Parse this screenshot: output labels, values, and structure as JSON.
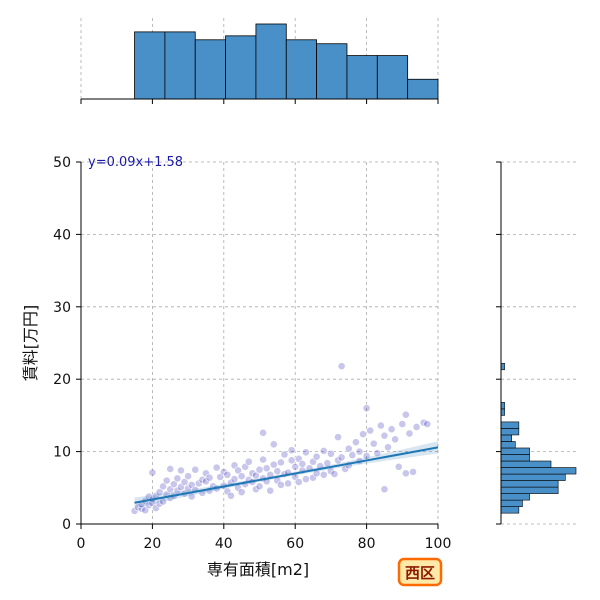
{
  "chart_data": {
    "type": "scatter",
    "xlabel": "専有面積[m2]",
    "ylabel": "賃料[万円]",
    "xlim": [
      0,
      100
    ],
    "ylim": [
      0,
      50
    ],
    "x_ticks": [
      0,
      20,
      40,
      60,
      80,
      100
    ],
    "y_ticks": [
      0,
      10,
      20,
      30,
      40,
      50
    ],
    "grid": true,
    "regression": {
      "equation_label": "y=0.09x+1.58",
      "slope": 0.09,
      "intercept": 1.58,
      "x_range": [
        15,
        100
      ]
    },
    "badge_label": "西区",
    "colors": {
      "points": "#3b33b8",
      "regression_line": "#1f77b4",
      "histogram_fill": "#4a90c8",
      "badge_fill": "#ffe9a8",
      "badge_border": "#ff6a00"
    },
    "points": [
      [
        15,
        1.8
      ],
      [
        16,
        2.3
      ],
      [
        17,
        2.1
      ],
      [
        17,
        2.7
      ],
      [
        18,
        3.2
      ],
      [
        18,
        1.9
      ],
      [
        19,
        2.6
      ],
      [
        19,
        3.8
      ],
      [
        20,
        2.9
      ],
      [
        20,
        3.4
      ],
      [
        20,
        7.1
      ],
      [
        21,
        2.2
      ],
      [
        21,
        3.9
      ],
      [
        22,
        4.4
      ],
      [
        22,
        2.8
      ],
      [
        23,
        3.1
      ],
      [
        23,
        5.2
      ],
      [
        24,
        4.1
      ],
      [
        24,
        6.0
      ],
      [
        25,
        3.6
      ],
      [
        25,
        4.8
      ],
      [
        25,
        7.6
      ],
      [
        26,
        5.5
      ],
      [
        26,
        3.9
      ],
      [
        27,
        4.6
      ],
      [
        27,
        6.3
      ],
      [
        28,
        5.1
      ],
      [
        28,
        7.4
      ],
      [
        29,
        4.2
      ],
      [
        29,
        5.8
      ],
      [
        30,
        4.9
      ],
      [
        30,
        6.6
      ],
      [
        31,
        5.4
      ],
      [
        31,
        3.8
      ],
      [
        32,
        7.5
      ],
      [
        32,
        4.7
      ],
      [
        33,
        5.6
      ],
      [
        34,
        6.1
      ],
      [
        34,
        4.3
      ],
      [
        35,
        5.9
      ],
      [
        35,
        7.0
      ],
      [
        36,
        4.6
      ],
      [
        36,
        6.4
      ],
      [
        37,
        5.2
      ],
      [
        38,
        7.8
      ],
      [
        38,
        4.9
      ],
      [
        39,
        6.5
      ],
      [
        40,
        5.3
      ],
      [
        40,
        7.2
      ],
      [
        41,
        4.5
      ],
      [
        41,
        6.8
      ],
      [
        42,
        5.7
      ],
      [
        42,
        3.9
      ],
      [
        43,
        6.2
      ],
      [
        43,
        8.1
      ],
      [
        44,
        5.0
      ],
      [
        44,
        7.4
      ],
      [
        45,
        6.6
      ],
      [
        45,
        4.4
      ],
      [
        46,
        7.9
      ],
      [
        46,
        5.5
      ],
      [
        47,
        6.1
      ],
      [
        47,
        8.6
      ],
      [
        48,
        5.8
      ],
      [
        48,
        7.0
      ],
      [
        49,
        4.8
      ],
      [
        49,
        6.7
      ],
      [
        50,
        7.5
      ],
      [
        50,
        5.2
      ],
      [
        51,
        8.9
      ],
      [
        51,
        6.3
      ],
      [
        51,
        12.6
      ],
      [
        52,
        5.9
      ],
      [
        52,
        7.7
      ],
      [
        53,
        4.6
      ],
      [
        53,
        6.8
      ],
      [
        54,
        8.2
      ],
      [
        54,
        11.0
      ],
      [
        55,
        6.0
      ],
      [
        55,
        7.3
      ],
      [
        56,
        5.4
      ],
      [
        56,
        8.5
      ],
      [
        57,
        6.9
      ],
      [
        57,
        9.6
      ],
      [
        58,
        7.1
      ],
      [
        58,
        5.6
      ],
      [
        59,
        8.8
      ],
      [
        59,
        10.2
      ],
      [
        60,
        6.5
      ],
      [
        60,
        7.9
      ],
      [
        61,
        9.0
      ],
      [
        61,
        5.8
      ],
      [
        62,
        7.4
      ],
      [
        62,
        8.3
      ],
      [
        63,
        6.2
      ],
      [
        63,
        9.9
      ],
      [
        64,
        7.7
      ],
      [
        65,
        8.6
      ],
      [
        65,
        6.4
      ],
      [
        66,
        9.3
      ],
      [
        66,
        7.0
      ],
      [
        67,
        8.0
      ],
      [
        68,
        6.8
      ],
      [
        68,
        10.1
      ],
      [
        69,
        8.4
      ],
      [
        70,
        7.3
      ],
      [
        70,
        9.7
      ],
      [
        71,
        6.9
      ],
      [
        72,
        8.8
      ],
      [
        72,
        12.0
      ],
      [
        73,
        9.2
      ],
      [
        73,
        21.8
      ],
      [
        74,
        7.6
      ],
      [
        75,
        10.4
      ],
      [
        75,
        8.1
      ],
      [
        76,
        9.5
      ],
      [
        77,
        11.3
      ],
      [
        78,
        8.7
      ],
      [
        78,
        10.0
      ],
      [
        79,
        12.4
      ],
      [
        80,
        9.4
      ],
      [
        80,
        16.0
      ],
      [
        81,
        12.9
      ],
      [
        82,
        11.1
      ],
      [
        83,
        9.8
      ],
      [
        84,
        13.6
      ],
      [
        85,
        4.8
      ],
      [
        85,
        12.2
      ],
      [
        86,
        10.6
      ],
      [
        87,
        13.1
      ],
      [
        88,
        11.7
      ],
      [
        89,
        7.9
      ],
      [
        90,
        13.8
      ],
      [
        91,
        15.1
      ],
      [
        91,
        7.0
      ],
      [
        92,
        12.5
      ],
      [
        93,
        7.2
      ],
      [
        94,
        13.4
      ],
      [
        96,
        14.0
      ],
      [
        97,
        13.8
      ]
    ]
  }
}
